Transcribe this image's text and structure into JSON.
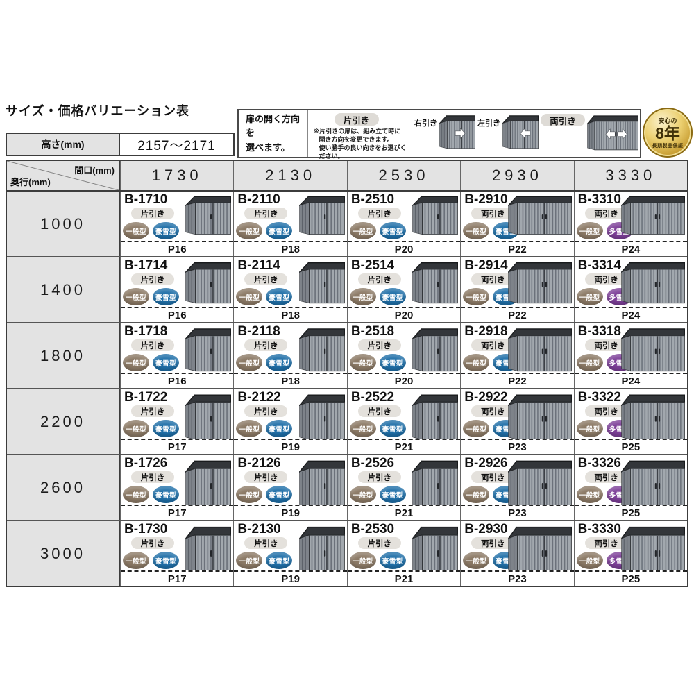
{
  "page": {
    "title": "サイズ・価格バリエーション表"
  },
  "height_spec": {
    "label": "高さ(mm)",
    "value": "2157～2171"
  },
  "legend": {
    "intro_line1": "扉の開く方向を",
    "intro_line2": "選べます。",
    "katabiki_label": "片引き",
    "note_line1": "※片引きの扉は、組み立て時に",
    "note_line2": "開き方向を変更できます。",
    "note_line3": "使い勝手の良い向きをお選びください。",
    "right_label": "右引き",
    "left_label": "左引き",
    "ryobiki_label": "両引き"
  },
  "warranty_badge": {
    "top": "安心の",
    "years": "8年",
    "bottom": "長期製品保証"
  },
  "table": {
    "corner_top": "間口(mm)",
    "corner_bottom": "奥行(mm)",
    "columns": [
      "1730",
      "2130",
      "2530",
      "2930",
      "3330"
    ],
    "type_colors": {
      "一般型": "#8c7a66",
      "豪雪型": "#1f6fa8",
      "多雪型": "#7d3f98"
    },
    "rows": [
      {
        "depth": "1000",
        "cells": [
          {
            "model": "B-1710",
            "door": "片引き",
            "types": [
              "一般型",
              "豪雪型"
            ],
            "page": "P16"
          },
          {
            "model": "B-2110",
            "door": "片引き",
            "types": [
              "一般型",
              "豪雪型"
            ],
            "page": "P18"
          },
          {
            "model": "B-2510",
            "door": "片引き",
            "types": [
              "一般型",
              "豪雪型"
            ],
            "page": "P20"
          },
          {
            "model": "B-2910",
            "door": "両引き",
            "types": [
              "一般型",
              "豪雪型"
            ],
            "page": "P22"
          },
          {
            "model": "B-3310",
            "door": "両引き",
            "types": [
              "一般型",
              "多雪型"
            ],
            "page": "P24"
          }
        ]
      },
      {
        "depth": "1400",
        "cells": [
          {
            "model": "B-1714",
            "door": "片引き",
            "types": [
              "一般型",
              "豪雪型"
            ],
            "page": "P16"
          },
          {
            "model": "B-2114",
            "door": "片引き",
            "types": [
              "一般型",
              "豪雪型"
            ],
            "page": "P18"
          },
          {
            "model": "B-2514",
            "door": "片引き",
            "types": [
              "一般型",
              "豪雪型"
            ],
            "page": "P20"
          },
          {
            "model": "B-2914",
            "door": "両引き",
            "types": [
              "一般型",
              "豪雪型"
            ],
            "page": "P22"
          },
          {
            "model": "B-3314",
            "door": "両引き",
            "types": [
              "一般型",
              "多雪型"
            ],
            "page": "P24"
          }
        ]
      },
      {
        "depth": "1800",
        "cells": [
          {
            "model": "B-1718",
            "door": "片引き",
            "types": [
              "一般型",
              "豪雪型"
            ],
            "page": "P16"
          },
          {
            "model": "B-2118",
            "door": "片引き",
            "types": [
              "一般型",
              "豪雪型"
            ],
            "page": "P18"
          },
          {
            "model": "B-2518",
            "door": "片引き",
            "types": [
              "一般型",
              "豪雪型"
            ],
            "page": "P20"
          },
          {
            "model": "B-2918",
            "door": "両引き",
            "types": [
              "一般型",
              "豪雪型"
            ],
            "page": "P22"
          },
          {
            "model": "B-3318",
            "door": "両引き",
            "types": [
              "一般型",
              "多雪型"
            ],
            "page": "P24"
          }
        ]
      },
      {
        "depth": "2200",
        "cells": [
          {
            "model": "B-1722",
            "door": "片引き",
            "types": [
              "一般型",
              "豪雪型"
            ],
            "page": "P17"
          },
          {
            "model": "B-2122",
            "door": "片引き",
            "types": [
              "一般型",
              "豪雪型"
            ],
            "page": "P19"
          },
          {
            "model": "B-2522",
            "door": "片引き",
            "types": [
              "一般型",
              "豪雪型"
            ],
            "page": "P21"
          },
          {
            "model": "B-2922",
            "door": "両引き",
            "types": [
              "一般型",
              "豪雪型"
            ],
            "page": "P23"
          },
          {
            "model": "B-3322",
            "door": "両引き",
            "types": [
              "一般型",
              "多雪型"
            ],
            "page": "P25"
          }
        ]
      },
      {
        "depth": "2600",
        "cells": [
          {
            "model": "B-1726",
            "door": "片引き",
            "types": [
              "一般型",
              "豪雪型"
            ],
            "page": "P17"
          },
          {
            "model": "B-2126",
            "door": "片引き",
            "types": [
              "一般型",
              "豪雪型"
            ],
            "page": "P19"
          },
          {
            "model": "B-2526",
            "door": "片引き",
            "types": [
              "一般型",
              "豪雪型"
            ],
            "page": "P21"
          },
          {
            "model": "B-2926",
            "door": "両引き",
            "types": [
              "一般型",
              "豪雪型"
            ],
            "page": "P23"
          },
          {
            "model": "B-3326",
            "door": "両引き",
            "types": [
              "一般型",
              "多雪型"
            ],
            "page": "P25"
          }
        ]
      },
      {
        "depth": "3000",
        "cells": [
          {
            "model": "B-1730",
            "door": "片引き",
            "types": [
              "一般型",
              "豪雪型"
            ],
            "page": "P17"
          },
          {
            "model": "B-2130",
            "door": "片引き",
            "types": [
              "一般型",
              "豪雪型"
            ],
            "page": "P19"
          },
          {
            "model": "B-2530",
            "door": "片引き",
            "types": [
              "一般型",
              "豪雪型"
            ],
            "page": "P21"
          },
          {
            "model": "B-2930",
            "door": "両引き",
            "types": [
              "一般型",
              "豪雪型"
            ],
            "page": "P23"
          },
          {
            "model": "B-3330",
            "door": "両引き",
            "types": [
              "一般型",
              "多雪型"
            ],
            "page": "P25"
          }
        ]
      }
    ]
  }
}
